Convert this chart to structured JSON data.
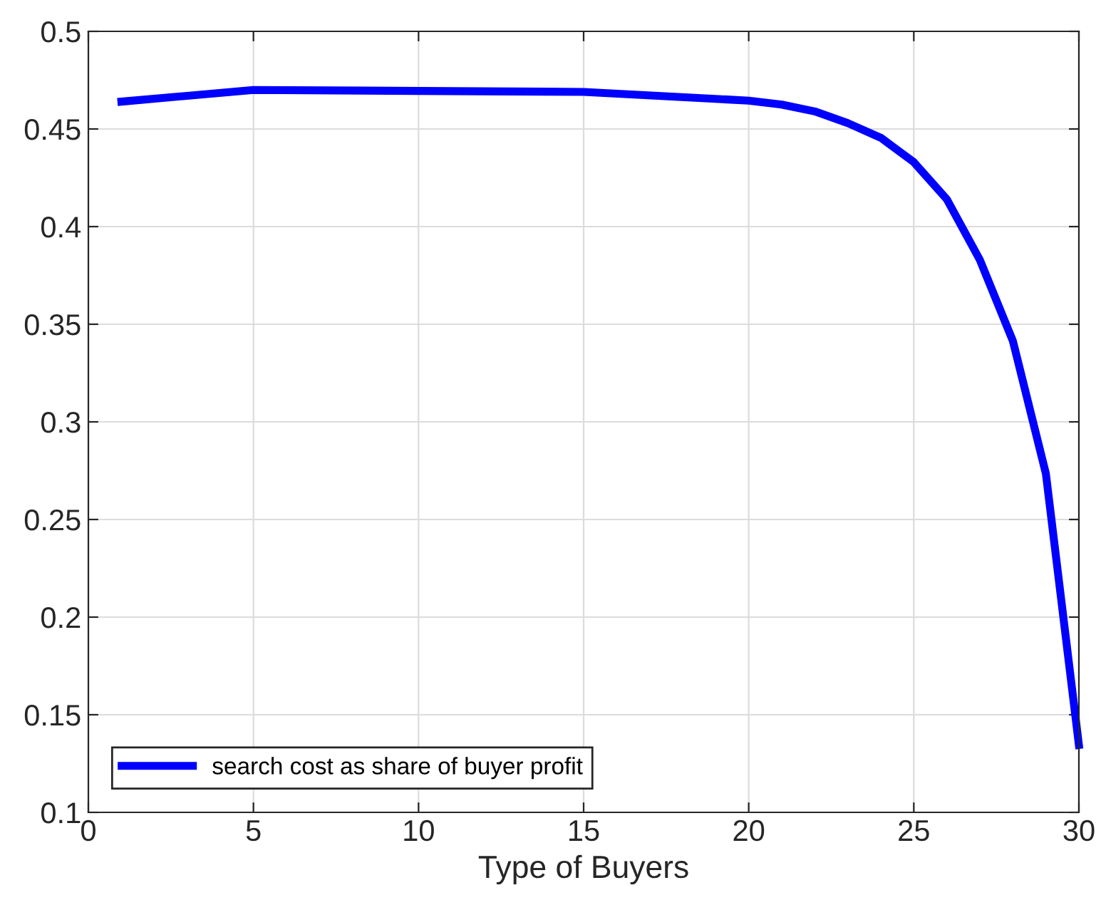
{
  "chart_data": {
    "type": "line",
    "xlabel": "Type of Buyers",
    "x": [
      1,
      5,
      10,
      15,
      20,
      21,
      22,
      23,
      24,
      25,
      26,
      27,
      28,
      29,
      30
    ],
    "series": [
      {
        "name": "search cost as share of buyer profit",
        "color": "#0000ff",
        "values": [
          0.464,
          0.47,
          0.4695,
          0.469,
          0.4645,
          0.4625,
          0.459,
          0.453,
          0.4455,
          0.433,
          0.414,
          0.383,
          0.3415,
          0.2735,
          0.1345
        ]
      }
    ],
    "xlim": [
      0,
      30
    ],
    "xticks": [
      0,
      5,
      10,
      15,
      20,
      25,
      30
    ],
    "ylim": [
      0.1,
      0.5
    ],
    "yticks": [
      0.1,
      0.15,
      0.2,
      0.25,
      0.3,
      0.35,
      0.4,
      0.45,
      0.5
    ],
    "grid": true,
    "legend": "bottom left",
    "marker": "none",
    "line_style": "solid"
  }
}
